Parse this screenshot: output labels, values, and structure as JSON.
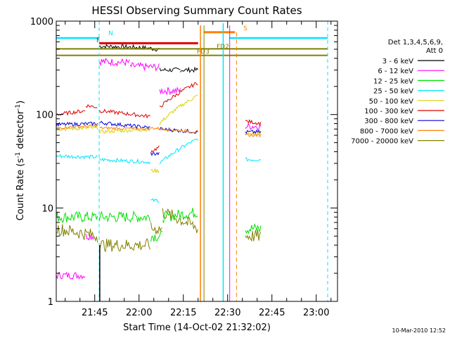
{
  "footer_date": "10-Mar-2010 12:52",
  "chart_data": {
    "type": "line",
    "title": "HESSI Observing Summary Count Rates",
    "xlabel": "Start Time (14-Oct-02 21:32:02)",
    "ylabel_prefix": "Count Rate (s",
    "ylabel_sup": "-1",
    "ylabel_mid": " detector",
    "ylabel_sup2": "-1",
    "ylabel_suffix": ")",
    "yscale": "log",
    "ylim": [
      1,
      1000
    ],
    "x_tick_labels": [
      "21:45",
      "22:00",
      "22:15",
      "22:30",
      "22:45",
      "23:00"
    ],
    "y_tick_labels": [
      "1",
      "10",
      "100",
      "1000"
    ],
    "legend_title_1": "Det 1,3,4,5,6,9,",
    "legend_title_2": "Att 0",
    "legend_position": "right",
    "series": [
      {
        "name": "3 - 6 keV",
        "color": "#000000"
      },
      {
        "name": "6 - 12 keV",
        "color": "#ff00ff"
      },
      {
        "name": "12 - 25 keV",
        "color": "#00e000"
      },
      {
        "name": "25 - 50 keV",
        "color": "#00e5ff"
      },
      {
        "name": "50 - 100 keV",
        "color": "#d8d000"
      },
      {
        "name": "100 - 300 keV",
        "color": "#dd0000"
      },
      {
        "name": "300 - 800 keV",
        "color": "#0000dd"
      },
      {
        "name": "800 - 7000 keV",
        "color": "#ff8000"
      },
      {
        "name": "7000 - 20000 keV",
        "color": "#808000"
      }
    ],
    "flags": [
      {
        "label": "N",
        "color": "#00e5ff"
      },
      {
        "label": "F",
        "color": "#dd0000"
      },
      {
        "label": "FD2",
        "color": "#808000"
      },
      {
        "label": "FD3",
        "color": "#808000"
      },
      {
        "label": "S",
        "color": "#ff8000"
      }
    ]
  }
}
